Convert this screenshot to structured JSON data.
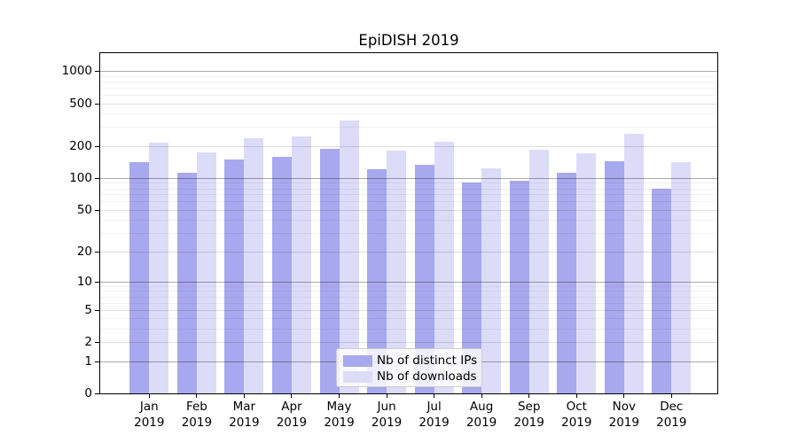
{
  "title": "EpiDISH 2019",
  "chart_data": {
    "type": "bar",
    "title": "EpiDISH 2019",
    "categories": [
      "Jan 2019",
      "Feb 2019",
      "Mar 2019",
      "Apr 2019",
      "May 2019",
      "Jun 2019",
      "Jul 2019",
      "Aug 2019",
      "Sep 2019",
      "Oct 2019",
      "Nov 2019",
      "Dec 2019"
    ],
    "series": [
      {
        "name": "Nb of distinct IPs",
        "color": "#a8a8ee",
        "values": [
          142,
          112,
          149,
          157,
          186,
          122,
          133,
          91,
          94,
          113,
          143,
          79
        ]
      },
      {
        "name": "Nb of downloads",
        "color": "#dcdcf8",
        "values": [
          216,
          175,
          237,
          244,
          348,
          180,
          219,
          123,
          183,
          170,
          260,
          140
        ]
      }
    ],
    "xlabel": "",
    "ylabel": "",
    "y_axis": {
      "scale": "log1p",
      "ticks": [
        0,
        1,
        2,
        5,
        10,
        20,
        50,
        100,
        200,
        500,
        1000
      ],
      "decade_ticks": [
        1,
        10,
        100,
        1000
      ],
      "minor_gridlines": [
        3,
        4,
        6,
        7,
        8,
        9,
        30,
        40,
        60,
        70,
        80,
        90,
        300,
        400,
        600,
        700,
        800,
        900
      ],
      "ylim": [
        0,
        1520
      ]
    },
    "grid": "on",
    "legend": {
      "position": "lower center",
      "entries": [
        "Nb of distinct IPs",
        "Nb of downloads"
      ]
    }
  }
}
